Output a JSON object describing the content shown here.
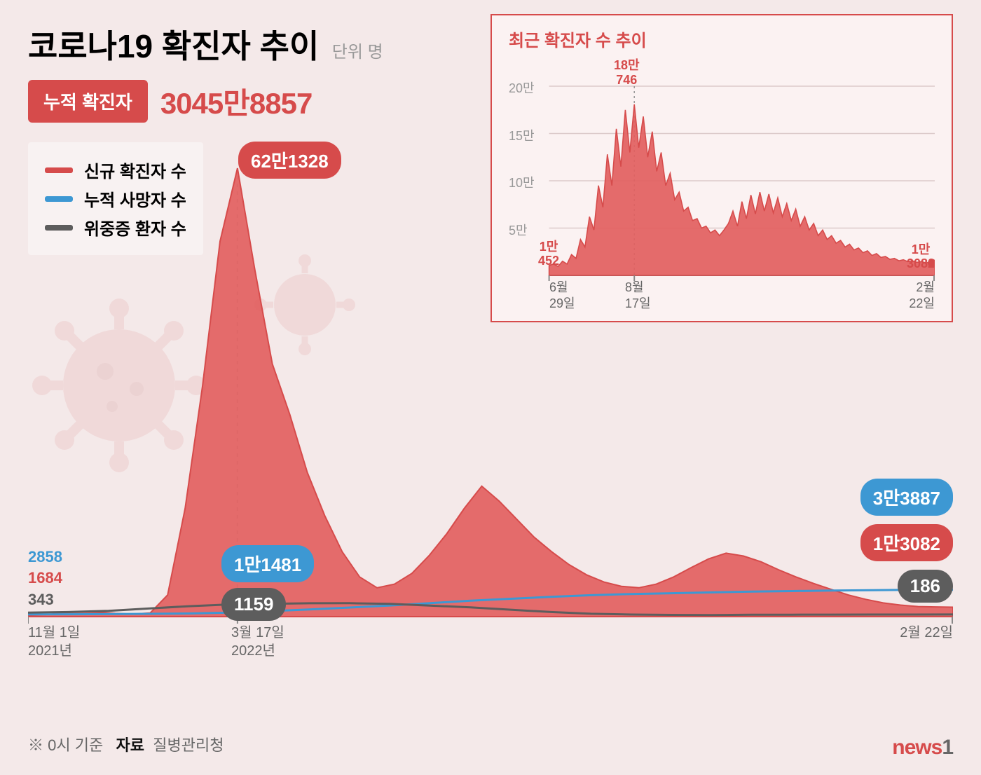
{
  "title": "코로나19 확진자 추이",
  "unit": "단위 명",
  "cumulative": {
    "label": "누적 확진자",
    "value": "3045만8857"
  },
  "legend": {
    "new_cases": "신규 확진자 수",
    "deaths": "누적 사망자 수",
    "severe": "위중증 환자 수"
  },
  "colors": {
    "red": "#d64b4b",
    "red_fill": "#e25f5f",
    "blue": "#3d98d3",
    "grey": "#5d5d5d",
    "bg": "#f4e9e9",
    "inset_bg": "#fbf2f2",
    "grid": "#dccaca",
    "axis": "#888",
    "text_muted": "#999"
  },
  "main_chart": {
    "type": "area-multi",
    "x_start_label": {
      "l1": "11월 1일",
      "l2": "2021년"
    },
    "x_peak_label": {
      "l1": "3월 17일",
      "l2": "2022년"
    },
    "x_end_label": {
      "l1": "2월 22일",
      "l2": ""
    },
    "peak_value": "62만1328",
    "left_values": {
      "blue": "2858",
      "red": "1684",
      "grey": "343"
    },
    "mid_values": {
      "blue": "1만1481",
      "grey": "1159"
    },
    "right_values": {
      "blue": "3만3887",
      "red": "1만3082",
      "grey": "186"
    },
    "ylim": [
      0,
      621328
    ],
    "blue_series": [
      2858,
      3000,
      3200,
      3500,
      4000,
      5000,
      7000,
      9000,
      11481,
      14000,
      17000,
      20000,
      22500,
      25000,
      27000,
      28500,
      29500,
      30500,
      31500,
      32200,
      32900,
      33400,
      33700,
      33887
    ],
    "grey_series": [
      343,
      400,
      500,
      700,
      900,
      1050,
      1100,
      1150,
      1159,
      1100,
      950,
      800,
      600,
      400,
      250,
      180,
      150,
      140,
      160,
      170,
      175,
      180,
      184,
      186
    ],
    "red_series": [
      1684,
      2800,
      5200,
      7000,
      6000,
      4500,
      3500,
      5000,
      30000,
      150000,
      320000,
      520000,
      621328,
      480000,
      350000,
      280000,
      200000,
      140000,
      90000,
      55000,
      40000,
      45000,
      60000,
      85000,
      115000,
      150000,
      180746,
      160000,
      135000,
      110000,
      90000,
      72000,
      58000,
      48000,
      42000,
      40000,
      45000,
      55000,
      68000,
      80000,
      88000,
      84000,
      76000,
      65000,
      55000,
      46000,
      38000,
      30000,
      24000,
      19000,
      16000,
      14000,
      13500,
      13082
    ]
  },
  "inset": {
    "title": "최근 확진자 수 추이",
    "type": "area",
    "ylim": [
      0,
      200000
    ],
    "yticks": [
      {
        "v": 50000,
        "l": "5만"
      },
      {
        "v": 100000,
        "l": "10만"
      },
      {
        "v": 150000,
        "l": "15만"
      },
      {
        "v": 200000,
        "l": "20만"
      }
    ],
    "x_labels": {
      "start": {
        "l1": "6월",
        "l2": "29일"
      },
      "peak": {
        "l1": "8월",
        "l2": "17일"
      },
      "end": {
        "l1": "2월",
        "l2": "22일"
      }
    },
    "start_ann": {
      "l1": "1만",
      "l2": "452"
    },
    "peak_ann": {
      "l1": "18만",
      "l2": "746"
    },
    "end_ann": {
      "l1": "1만",
      "l2": "3082"
    },
    "series": [
      10452,
      12000,
      9500,
      15000,
      12000,
      22000,
      18000,
      38000,
      30000,
      62000,
      48000,
      95000,
      72000,
      128000,
      95000,
      155000,
      115000,
      175000,
      130000,
      180746,
      135000,
      168000,
      125000,
      152000,
      110000,
      130000,
      95000,
      108000,
      80000,
      88000,
      68000,
      72000,
      58000,
      60000,
      50000,
      52000,
      45000,
      48000,
      42000,
      48000,
      55000,
      68000,
      52000,
      78000,
      60000,
      85000,
      65000,
      88000,
      68000,
      86000,
      66000,
      82000,
      62000,
      76000,
      58000,
      70000,
      52000,
      62000,
      48000,
      55000,
      42000,
      48000,
      38000,
      42000,
      34000,
      37000,
      30000,
      33000,
      27000,
      29000,
      24000,
      26000,
      21000,
      23000,
      19000,
      20000,
      17000,
      18000,
      15500,
      16500,
      14500,
      15500,
      13800,
      14600,
      13200,
      13900,
      13082
    ]
  },
  "footer": {
    "note": "※ 0시 기준",
    "src_label": "자료",
    "src": "질병관리청"
  },
  "logo": {
    "t": "news",
    "n": "1"
  }
}
